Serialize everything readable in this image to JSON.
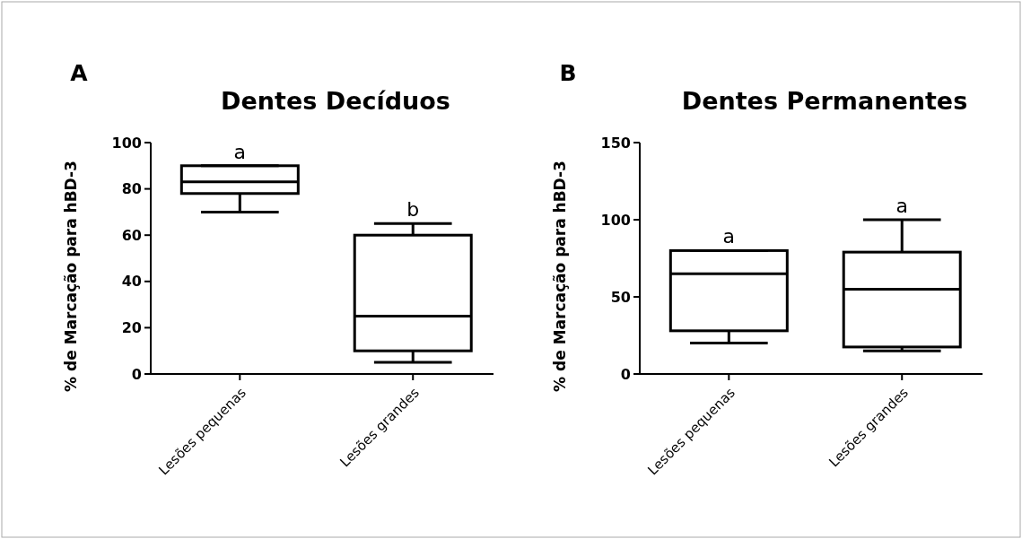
{
  "chart_data": [
    {
      "type": "box",
      "title": "Dentes Decíduos",
      "ylabel": "% de Marcação para hBD-3",
      "categories": [
        "Lesões pequenas",
        "Lesões grandes"
      ],
      "boxes": [
        {
          "low": 70,
          "q1": 78,
          "median": 83,
          "q3": 90,
          "high": 90
        },
        {
          "low": 5,
          "q1": 10,
          "median": 25,
          "q3": 60,
          "high": 65
        }
      ],
      "ylim": [
        0,
        100
      ],
      "yticks": [
        0,
        20,
        40,
        60,
        80,
        100
      ],
      "annotations": [
        "A",
        {
          "text": "a",
          "x": "Lesões pequenas",
          "y": 90
        },
        {
          "text": "b",
          "x": "Lesões grandes",
          "y": 65
        }
      ]
    },
    {
      "type": "box",
      "title": "Dentes Permanentes",
      "ylabel": "% de Marcação para hBD-3",
      "categories": [
        "Lesões pequenas",
        "Lesões grandes"
      ],
      "boxes": [
        {
          "low": 20,
          "q1": 28,
          "median": 65,
          "q3": 80,
          "high": 80
        },
        {
          "low": 15,
          "q1": 17.5,
          "median": 55,
          "q3": 79,
          "high": 100
        }
      ],
      "ylim": [
        0,
        150
      ],
      "yticks": [
        0,
        50,
        100,
        150
      ],
      "annotations": [
        "B",
        {
          "text": "a",
          "x": "Lesões pequenas",
          "y": 80
        },
        {
          "text": "a",
          "x": "Lesões grandes",
          "y": 100
        }
      ]
    }
  ]
}
